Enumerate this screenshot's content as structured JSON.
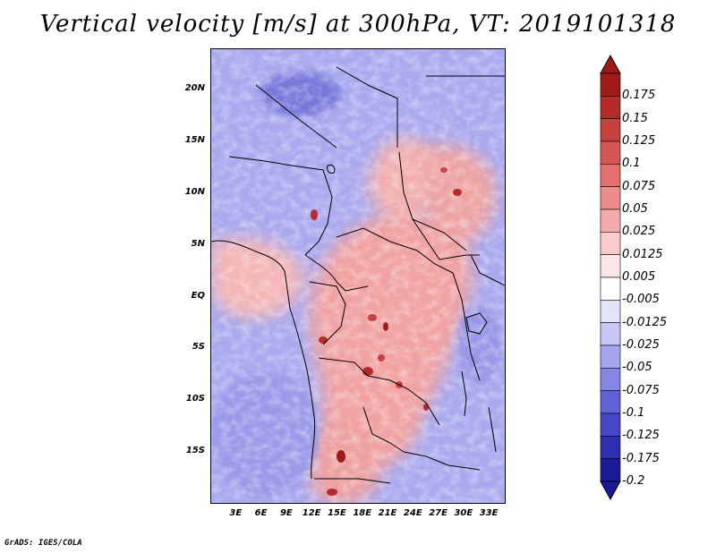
{
  "title": "Vertical velocity [m/s] at 300hPa, VT: 2019101318",
  "credit": "GrADS: IGES/COLA",
  "map": {
    "lon_range": [
      0,
      35
    ],
    "lat_range": [
      -20,
      24
    ],
    "y_ticks": [
      {
        "lat": 20,
        "label": "20N"
      },
      {
        "lat": 15,
        "label": "15N"
      },
      {
        "lat": 10,
        "label": "10N"
      },
      {
        "lat": 5,
        "label": "5N"
      },
      {
        "lat": 0,
        "label": "EQ"
      },
      {
        "lat": -5,
        "label": "5S"
      },
      {
        "lat": -10,
        "label": "10S"
      },
      {
        "lat": -15,
        "label": "15S"
      }
    ],
    "x_ticks": [
      {
        "lon": 3,
        "label": "3E"
      },
      {
        "lon": 6,
        "label": "6E"
      },
      {
        "lon": 9,
        "label": "9E"
      },
      {
        "lon": 12,
        "label": "12E"
      },
      {
        "lon": 15,
        "label": "15E"
      },
      {
        "lon": 18,
        "label": "18E"
      },
      {
        "lon": 21,
        "label": "21E"
      },
      {
        "lon": 24,
        "label": "24E"
      },
      {
        "lon": 27,
        "label": "27E"
      },
      {
        "lon": 30,
        "label": "30E"
      },
      {
        "lon": 33,
        "label": "33E"
      }
    ]
  },
  "colorbar": {
    "labels": [
      "0.175",
      "0.15",
      "0.125",
      "0.1",
      "0.075",
      "0.05",
      "0.025",
      "0.0125",
      "0.005",
      "-0.005",
      "-0.0125",
      "-0.025",
      "-0.05",
      "-0.075",
      "-0.1",
      "-0.125",
      "-0.175",
      "-0.2"
    ],
    "colors": [
      "#a01a1a",
      "#b52a2a",
      "#c84040",
      "#d85555",
      "#e46f6f",
      "#ee8c8c",
      "#f5abab",
      "#fbcbcb",
      "#fde6e6",
      "#ffffff",
      "#e2e2fb",
      "#c6c6f7",
      "#a6a6f0",
      "#8686e6",
      "#6262d8",
      "#4646c8",
      "#2e2eb2",
      "#1a1a96"
    ]
  }
}
